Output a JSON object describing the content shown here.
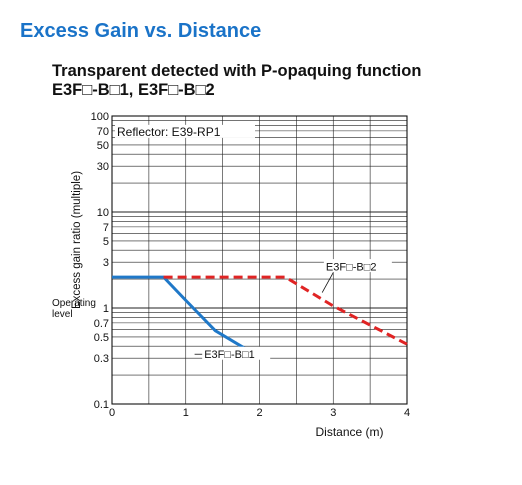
{
  "heading": "Excess Gain vs. Distance",
  "subtitle_line1": "Transparent detected with P-opaquing function",
  "subtitle_line2": "E3F□-B□1, E3F□-B□2",
  "colors": {
    "heading": "#1a73c8",
    "series1": "#1f78c8",
    "series2": "#e02424"
  },
  "chart_data": {
    "type": "line",
    "title": "",
    "xlabel": "Distance (m)",
    "ylabel": "Excess gain ratio (multiple)",
    "x_scale": "linear",
    "y_scale": "log",
    "xlim": [
      0,
      4
    ],
    "ylim": [
      0.1,
      100
    ],
    "x_ticks": [
      0,
      1,
      2,
      3,
      4
    ],
    "y_tick_labels": [
      {
        "value": 100,
        "label": "100"
      },
      {
        "value": 70,
        "label": "70"
      },
      {
        "value": 50,
        "label": "50"
      },
      {
        "value": 30,
        "label": "30"
      },
      {
        "value": 10,
        "label": "10"
      },
      {
        "value": 7,
        "label": "7"
      },
      {
        "value": 5,
        "label": "5"
      },
      {
        "value": 3,
        "label": "3"
      },
      {
        "value": 1,
        "label": "1"
      },
      {
        "value": 0.7,
        "label": "0.7"
      },
      {
        "value": 0.5,
        "label": "0.5"
      },
      {
        "value": 0.3,
        "label": "0.3"
      },
      {
        "value": 0.1,
        "label": "0.1"
      }
    ],
    "grid": true,
    "annotations": {
      "reflector": "Reflector: E39-RP1",
      "operating_level": "Operating\nlevel"
    },
    "series": [
      {
        "name": "E3F□-B□1",
        "style": "solid",
        "color": "#1f78c8",
        "x": [
          0,
          0.7,
          1.0,
          1.4,
          1.8,
          2.0
        ],
        "y": [
          2.1,
          2.1,
          1.2,
          0.58,
          0.38,
          0.33
        ],
        "label_at": {
          "x": 1.25,
          "y": 0.33
        }
      },
      {
        "name": "E3F□-B□2",
        "style": "dashed",
        "color": "#e02424",
        "x": [
          0.7,
          2.35,
          3.0,
          4.0
        ],
        "y": [
          2.1,
          2.1,
          1.05,
          0.42
        ],
        "label_at": {
          "x": 2.9,
          "y": 2.7
        }
      }
    ]
  }
}
